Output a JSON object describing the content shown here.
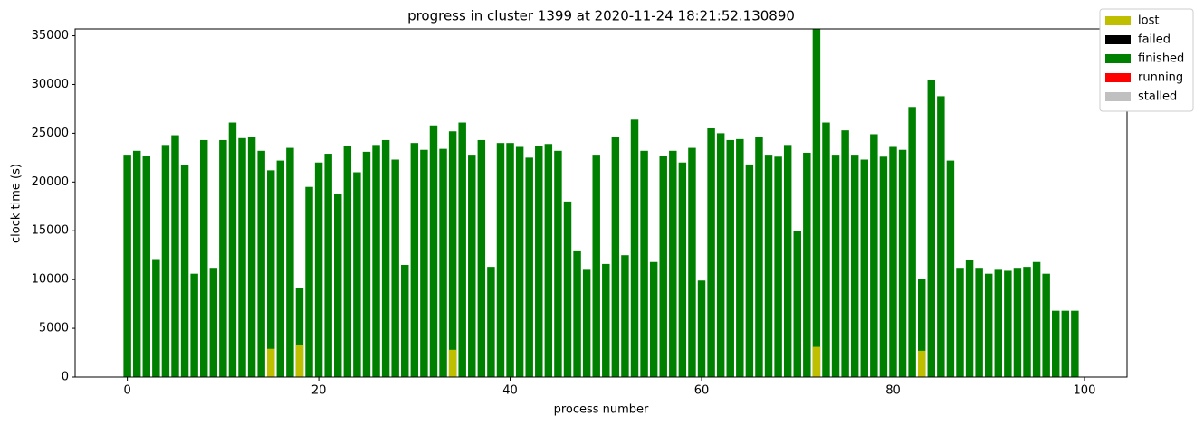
{
  "chart_data": {
    "type": "bar",
    "title": "progress in cluster 1399 at 2020-11-24 18:21:52.130890",
    "xlabel": "process number",
    "ylabel": "clock time (s)",
    "x": [
      0,
      1,
      2,
      3,
      4,
      5,
      6,
      7,
      8,
      9,
      10,
      11,
      12,
      13,
      14,
      15,
      16,
      17,
      18,
      19,
      20,
      21,
      22,
      23,
      24,
      25,
      26,
      27,
      28,
      29,
      30,
      31,
      32,
      33,
      34,
      35,
      36,
      37,
      38,
      39,
      40,
      41,
      42,
      43,
      44,
      45,
      46,
      47,
      48,
      49,
      50,
      51,
      52,
      53,
      54,
      55,
      56,
      57,
      58,
      59,
      60,
      61,
      62,
      63,
      64,
      65,
      66,
      67,
      68,
      69,
      70,
      71,
      72,
      73,
      74,
      75,
      76,
      77,
      78,
      79,
      80,
      81,
      82,
      83,
      84,
      85,
      86,
      87,
      88,
      89,
      90,
      91,
      92,
      93,
      94,
      95,
      96,
      97,
      98,
      99
    ],
    "series": [
      {
        "name": "lost",
        "color": "#bfbf00",
        "values": [
          null,
          null,
          null,
          null,
          null,
          null,
          null,
          null,
          null,
          null,
          null,
          null,
          null,
          null,
          null,
          2900,
          null,
          null,
          3300,
          null,
          null,
          null,
          null,
          null,
          null,
          null,
          null,
          null,
          null,
          null,
          null,
          null,
          null,
          null,
          2800,
          null,
          null,
          null,
          null,
          null,
          null,
          null,
          null,
          null,
          null,
          null,
          null,
          null,
          null,
          null,
          null,
          null,
          null,
          null,
          null,
          null,
          null,
          null,
          null,
          null,
          null,
          null,
          null,
          null,
          null,
          null,
          null,
          null,
          null,
          null,
          null,
          null,
          3100,
          null,
          null,
          null,
          null,
          null,
          null,
          null,
          null,
          null,
          null,
          2700,
          null,
          null,
          null,
          null,
          null,
          null,
          null,
          null,
          null,
          null,
          null,
          null,
          null,
          null,
          null,
          null
        ]
      },
      {
        "name": "failed",
        "color": "#000000",
        "values": [
          null,
          null,
          null,
          null,
          null,
          null,
          null,
          null,
          null,
          null,
          null,
          null,
          null,
          null,
          null,
          null,
          null,
          null,
          null,
          null,
          null,
          null,
          null,
          null,
          null,
          null,
          null,
          null,
          null,
          null,
          null,
          null,
          null,
          null,
          null,
          null,
          null,
          null,
          null,
          null,
          null,
          null,
          null,
          null,
          null,
          null,
          null,
          null,
          null,
          null,
          null,
          null,
          null,
          null,
          null,
          null,
          null,
          null,
          null,
          null,
          null,
          null,
          null,
          null,
          null,
          null,
          null,
          null,
          null,
          null,
          null,
          null,
          null,
          null,
          null,
          null,
          null,
          null,
          null,
          null,
          null,
          null,
          null,
          null,
          null,
          null,
          null,
          null,
          null,
          null,
          null,
          null,
          null,
          null,
          null,
          null,
          null,
          null,
          null,
          null
        ]
      },
      {
        "name": "finished",
        "color": "#008000",
        "values": [
          22800,
          23200,
          22700,
          12100,
          23800,
          24800,
          21700,
          10600,
          24300,
          11200,
          24300,
          26100,
          24500,
          24600,
          23200,
          21200,
          22200,
          23500,
          9100,
          19500,
          22000,
          22900,
          18800,
          23700,
          21000,
          23100,
          23800,
          24300,
          22300,
          11500,
          24000,
          23300,
          25800,
          23400,
          25200,
          26100,
          22800,
          24300,
          11300,
          24000,
          24000,
          23600,
          22500,
          23700,
          23900,
          23200,
          18000,
          12900,
          11000,
          22800,
          11600,
          24600,
          12500,
          26400,
          23200,
          11800,
          22700,
          23200,
          22000,
          23500,
          9900,
          25500,
          25000,
          24300,
          24400,
          21800,
          24600,
          22800,
          22600,
          23800,
          15000,
          23000,
          35700,
          26100,
          22800,
          25300,
          22800,
          22300,
          24900,
          22600,
          23600,
          23300,
          27700,
          10100,
          30500,
          28800,
          22200,
          11200,
          12000,
          11200,
          10600,
          11000,
          10900,
          11200,
          11300,
          11800,
          10600,
          6800,
          6800,
          6800
        ]
      },
      {
        "name": "running",
        "color": "#ff0000",
        "values": [
          null,
          null,
          null,
          null,
          null,
          null,
          null,
          null,
          null,
          null,
          null,
          null,
          null,
          null,
          null,
          null,
          null,
          null,
          null,
          null,
          null,
          null,
          null,
          null,
          null,
          null,
          null,
          null,
          null,
          null,
          null,
          null,
          null,
          null,
          null,
          null,
          null,
          null,
          null,
          null,
          null,
          null,
          null,
          null,
          null,
          null,
          null,
          null,
          null,
          null,
          null,
          null,
          null,
          null,
          null,
          null,
          null,
          null,
          null,
          null,
          null,
          null,
          null,
          null,
          null,
          null,
          null,
          null,
          null,
          null,
          null,
          null,
          null,
          null,
          null,
          null,
          null,
          null,
          null,
          null,
          null,
          null,
          null,
          null,
          null,
          null,
          null,
          null,
          null,
          null,
          null,
          null,
          null,
          null,
          null,
          null,
          null,
          null,
          null,
          null
        ]
      },
      {
        "name": "stalled",
        "color": "#c0c0c0",
        "values": [
          null,
          null,
          null,
          null,
          null,
          null,
          null,
          null,
          null,
          null,
          null,
          null,
          null,
          null,
          null,
          null,
          null,
          null,
          null,
          null,
          null,
          null,
          null,
          null,
          null,
          null,
          null,
          null,
          null,
          null,
          null,
          null,
          null,
          null,
          null,
          null,
          null,
          null,
          null,
          null,
          null,
          null,
          null,
          null,
          null,
          null,
          null,
          null,
          null,
          null,
          null,
          null,
          null,
          null,
          null,
          null,
          null,
          null,
          null,
          null,
          null,
          null,
          null,
          null,
          null,
          null,
          null,
          null,
          null,
          null,
          null,
          null,
          null,
          null,
          null,
          null,
          null,
          null,
          null,
          null,
          null,
          null,
          null,
          null,
          null,
          null,
          null,
          null,
          null,
          null,
          null,
          null,
          null,
          null,
          null,
          null,
          null,
          null,
          null,
          null
        ]
      }
    ],
    "xlim": [
      -5.45,
      104.45
    ],
    "xticks": [
      0,
      20,
      40,
      60,
      80,
      100
    ],
    "ylim": [
      0,
      35700
    ],
    "yticks": [
      0,
      5000,
      10000,
      15000,
      20000,
      25000,
      30000,
      35000
    ],
    "legend": "upper right"
  }
}
